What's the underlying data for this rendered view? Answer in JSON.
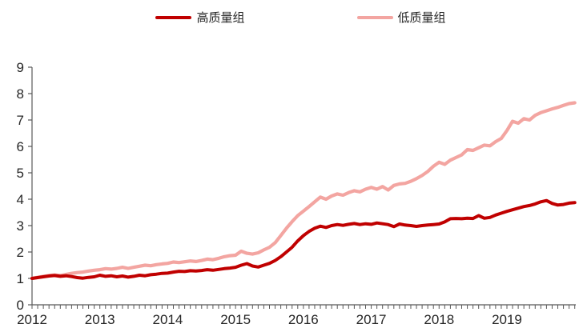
{
  "legend": {
    "series1": "高质量组",
    "series2": "低质量组"
  },
  "colors": {
    "high_quality_line": "#C00000",
    "low_quality_line": "#F3A5A1",
    "axis": "#595959",
    "label_text": "#262626"
  },
  "chart_data": {
    "type": "line",
    "title": "",
    "xlabel": "",
    "ylabel": "",
    "x_start_year": 2012,
    "points_per_year": 12,
    "xlim_years": [
      2012,
      2020
    ],
    "ylim": [
      0,
      9
    ],
    "grid": false,
    "legend_position": "top-center",
    "x_tick_labels": [
      "2012",
      "2013",
      "2014",
      "2015",
      "2016",
      "2017",
      "2018",
      "2019"
    ],
    "y_tick_labels": [
      "0",
      "1",
      "2",
      "3",
      "4",
      "5",
      "6",
      "7",
      "8",
      "9"
    ],
    "series": [
      {
        "name": "高质量组",
        "color": "#C00000",
        "stroke_width": 4,
        "values": [
          1.0,
          1.03,
          1.06,
          1.09,
          1.11,
          1.08,
          1.1,
          1.07,
          1.03,
          1.01,
          1.04,
          1.06,
          1.12,
          1.08,
          1.1,
          1.06,
          1.09,
          1.05,
          1.08,
          1.12,
          1.1,
          1.14,
          1.16,
          1.19,
          1.2,
          1.24,
          1.27,
          1.26,
          1.29,
          1.28,
          1.3,
          1.33,
          1.31,
          1.34,
          1.37,
          1.39,
          1.42,
          1.5,
          1.56,
          1.47,
          1.43,
          1.5,
          1.57,
          1.68,
          1.82,
          2.0,
          2.18,
          2.42,
          2.62,
          2.78,
          2.9,
          2.98,
          2.93,
          3.0,
          3.04,
          3.01,
          3.05,
          3.08,
          3.04,
          3.07,
          3.05,
          3.1,
          3.07,
          3.04,
          2.96,
          3.06,
          3.02,
          3.0,
          2.97,
          3.0,
          3.02,
          3.04,
          3.06,
          3.14,
          3.26,
          3.27,
          3.26,
          3.28,
          3.27,
          3.38,
          3.28,
          3.31,
          3.4,
          3.47,
          3.54,
          3.6,
          3.66,
          3.72,
          3.76,
          3.82,
          3.9,
          3.95,
          3.84,
          3.78,
          3.8,
          3.85,
          3.87
        ]
      },
      {
        "name": "低质量组",
        "color": "#F3A5A1",
        "stroke_width": 4.2,
        "values": [
          1.0,
          1.04,
          1.08,
          1.11,
          1.13,
          1.11,
          1.15,
          1.19,
          1.22,
          1.24,
          1.28,
          1.31,
          1.33,
          1.37,
          1.35,
          1.38,
          1.42,
          1.38,
          1.42,
          1.46,
          1.5,
          1.48,
          1.52,
          1.55,
          1.57,
          1.62,
          1.6,
          1.63,
          1.66,
          1.64,
          1.68,
          1.73,
          1.71,
          1.76,
          1.82,
          1.86,
          1.88,
          2.03,
          1.95,
          1.92,
          1.97,
          2.08,
          2.18,
          2.35,
          2.62,
          2.9,
          3.15,
          3.38,
          3.55,
          3.72,
          3.9,
          4.08,
          4.0,
          4.12,
          4.2,
          4.15,
          4.25,
          4.32,
          4.28,
          4.38,
          4.45,
          4.38,
          4.48,
          4.35,
          4.52,
          4.58,
          4.6,
          4.68,
          4.78,
          4.9,
          5.05,
          5.25,
          5.4,
          5.32,
          5.48,
          5.58,
          5.68,
          5.88,
          5.85,
          5.95,
          6.05,
          6.02,
          6.18,
          6.3,
          6.6,
          6.95,
          6.88,
          7.05,
          7.0,
          7.18,
          7.28,
          7.35,
          7.42,
          7.48,
          7.55,
          7.62,
          7.65
        ]
      }
    ]
  }
}
